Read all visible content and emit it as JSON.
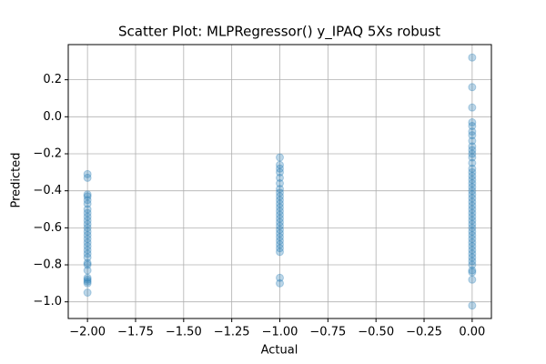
{
  "chart_data": {
    "type": "scatter",
    "title": "Scatter Plot: MLPRegressor() y_IPAQ 5Xs robust",
    "x_label": "Actual",
    "y_label": "Predicted",
    "color": "#1f77b4",
    "grid": true,
    "xlim": [
      -2.1,
      0.1
    ],
    "ylim": [
      -1.09,
      0.39
    ],
    "xticks": [
      {
        "value": -2,
        "label": "−2.00"
      },
      {
        "value": -1.75,
        "label": "−1.75"
      },
      {
        "value": -1.5,
        "label": "−1.50"
      },
      {
        "value": -1.25,
        "label": "−1.25"
      },
      {
        "value": -1,
        "label": "−1.00"
      },
      {
        "value": -0.75,
        "label": "−0.75"
      },
      {
        "value": -0.5,
        "label": "−0.50"
      },
      {
        "value": -0.25,
        "label": "−0.25"
      },
      {
        "value": 0,
        "label": "0.00"
      }
    ],
    "yticks": [
      {
        "value": -1,
        "label": "−1.0"
      },
      {
        "value": -0.8,
        "label": "−0.8"
      },
      {
        "value": -0.6,
        "label": "−0.6"
      },
      {
        "value": -0.4,
        "label": "−0.4"
      },
      {
        "value": -0.2,
        "label": "−0.2"
      },
      {
        "value": 0,
        "label": "0.0"
      },
      {
        "value": 0.2,
        "label": "0.2"
      }
    ],
    "x": [
      -2,
      -2,
      -2,
      -2,
      -2,
      -2,
      -2,
      -2,
      -2,
      -2,
      -2,
      -2,
      -2,
      -2,
      -2,
      -2,
      -2,
      -2,
      -2,
      -2,
      -2,
      -2,
      -2,
      -2,
      -2,
      -2,
      -2,
      -2,
      -1,
      -1,
      -1,
      -1,
      -1,
      -1,
      -1,
      -1,
      -1,
      -1,
      -1,
      -1,
      -1,
      -1,
      -1,
      -1,
      -1,
      -1,
      -1,
      -1,
      -1,
      -1,
      -1,
      -1,
      -1,
      -1,
      0,
      0,
      0,
      0,
      0,
      0,
      0,
      0,
      0,
      0,
      0,
      0,
      0,
      0,
      0,
      0,
      0,
      0,
      0,
      0,
      0,
      0,
      0,
      0,
      0,
      0,
      0,
      0,
      0,
      0,
      0,
      0,
      0,
      0,
      0,
      0,
      0,
      0,
      0,
      0,
      0,
      0,
      0,
      0
    ],
    "values": [
      -0.31,
      -0.33,
      -0.42,
      -0.43,
      -0.45,
      -0.47,
      -0.5,
      -0.52,
      -0.54,
      -0.56,
      -0.58,
      -0.6,
      -0.62,
      -0.64,
      -0.66,
      -0.68,
      -0.7,
      -0.72,
      -0.74,
      -0.76,
      -0.79,
      -0.8,
      -0.83,
      -0.87,
      -0.88,
      -0.89,
      -0.9,
      -0.95,
      -0.22,
      -0.26,
      -0.28,
      -0.3,
      -0.33,
      -0.36,
      -0.39,
      -0.41,
      -0.43,
      -0.45,
      -0.47,
      -0.49,
      -0.51,
      -0.53,
      -0.55,
      -0.57,
      -0.59,
      -0.61,
      -0.63,
      -0.65,
      -0.67,
      -0.69,
      -0.71,
      -0.73,
      -0.87,
      -0.9,
      0.32,
      0.16,
      0.05,
      -0.03,
      -0.05,
      -0.08,
      -0.1,
      -0.13,
      -0.16,
      -0.18,
      -0.2,
      -0.22,
      -0.25,
      -0.28,
      -0.3,
      -0.32,
      -0.34,
      -0.36,
      -0.38,
      -0.4,
      -0.42,
      -0.44,
      -0.46,
      -0.48,
      -0.5,
      -0.52,
      -0.54,
      -0.56,
      -0.58,
      -0.6,
      -0.62,
      -0.64,
      -0.66,
      -0.68,
      -0.7,
      -0.72,
      -0.74,
      -0.76,
      -0.78,
      -0.8,
      -0.83,
      -0.84,
      -0.88,
      -1.02
    ]
  }
}
